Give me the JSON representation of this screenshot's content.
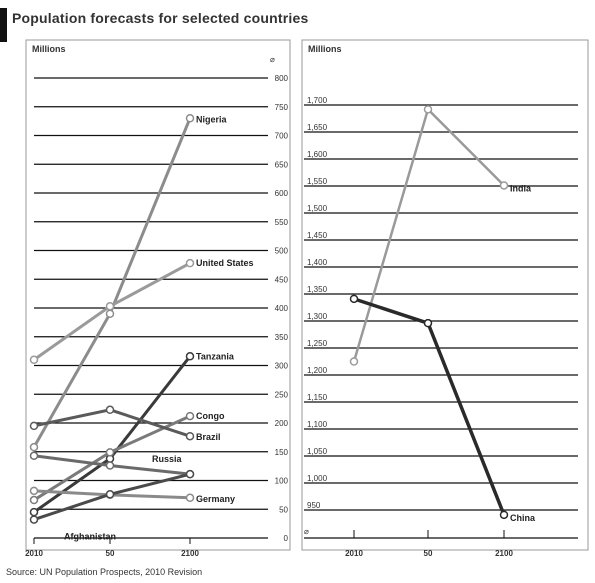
{
  "title": "Population forecasts for selected countries",
  "source": "Source: UN Population Prospects, 2010 Revision",
  "chart_data": [
    {
      "type": "line",
      "unit_label": "Millions",
      "x": [
        "2010",
        "50",
        "2100"
      ],
      "y_ticks": [
        "0",
        "50",
        "100",
        "150",
        "200",
        "250",
        "300",
        "350",
        "400",
        "450",
        "500",
        "550",
        "600",
        "650",
        "700",
        "750",
        "800"
      ],
      "ylim": [
        0,
        800
      ],
      "grid": true,
      "series": [
        {
          "name": "Nigeria",
          "values": [
            158,
            390,
            730
          ],
          "color": "#8c8c8c"
        },
        {
          "name": "United States",
          "values": [
            310,
            403,
            478
          ],
          "color": "#9a9a9a"
        },
        {
          "name": "Tanzania",
          "values": [
            45,
            138,
            316
          ],
          "color": "#3a3a3a"
        },
        {
          "name": "Congo",
          "values": [
            66,
            149,
            212
          ],
          "color": "#7a7a7a"
        },
        {
          "name": "Brazil",
          "values": [
            195,
            223,
            177
          ],
          "color": "#5a5a5a"
        },
        {
          "name": "Russia",
          "values": [
            143,
            126,
            111
          ],
          "color": "#6a6a6a"
        },
        {
          "name": "Germany",
          "values": [
            82,
            75,
            70
          ],
          "color": "#8a8a8a"
        },
        {
          "name": "Afghanistan",
          "values": [
            32,
            76,
            111
          ],
          "color": "#4a4a4a"
        }
      ]
    },
    {
      "type": "line",
      "unit_label": "Millions",
      "x": [
        "2010",
        "50",
        "2100"
      ],
      "y_ticks": [
        "950",
        "1,000",
        "1,050",
        "1,100",
        "1,150",
        "1,200",
        "1,250",
        "1,300",
        "1,350",
        "1,400",
        "1,450",
        "1,500",
        "1,550",
        "1,600",
        "1,650",
        "1,700"
      ],
      "ylim": [
        950,
        1750
      ],
      "grid": true,
      "series": [
        {
          "name": "India",
          "values": [
            1225,
            1692,
            1551
          ],
          "color": "#9a9a9a"
        },
        {
          "name": "China",
          "values": [
            1341,
            1296,
            941
          ],
          "color": "#2a2a2a"
        }
      ]
    }
  ]
}
